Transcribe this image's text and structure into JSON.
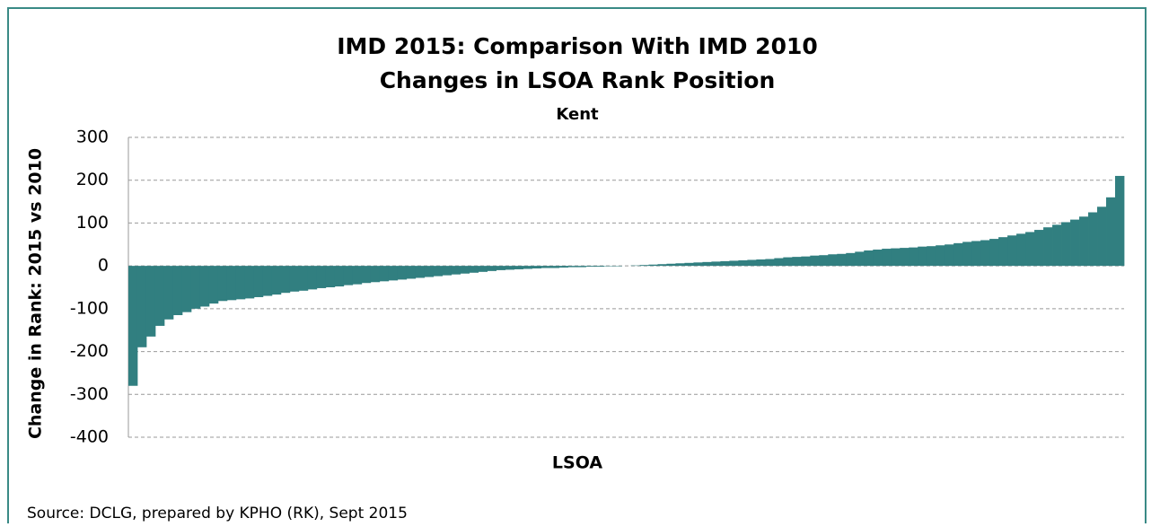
{
  "chart_data": {
    "type": "bar",
    "title_lines": [
      "IMD 2015: Comparison With IMD 2010",
      "Changes in LSOA Rank Position"
    ],
    "subtitle": "Kent",
    "x_label": "LSOA",
    "y_label": "Change in Rank: 2015 vs 2010",
    "source": "Source: DCLG, prepared by KPHO (RK), Sept 2015",
    "color": "#317f80",
    "ylim": [
      -400,
      300
    ],
    "yticks": [
      -400,
      -300,
      -200,
      -100,
      0,
      100,
      200,
      300
    ],
    "grid": true,
    "values": [
      -280,
      -190,
      -165,
      -140,
      -125,
      -115,
      -108,
      -100,
      -95,
      -88,
      -82,
      -80,
      -78,
      -76,
      -73,
      -70,
      -67,
      -63,
      -60,
      -58,
      -55,
      -52,
      -50,
      -48,
      -45,
      -43,
      -40,
      -38,
      -36,
      -34,
      -32,
      -30,
      -28,
      -26,
      -24,
      -22,
      -20,
      -18,
      -16,
      -14,
      -12,
      -10,
      -9,
      -8,
      -7,
      -6,
      -5,
      -5,
      -4,
      -3,
      -3,
      -2,
      -2,
      -1,
      -1,
      0,
      1,
      2,
      3,
      4,
      5,
      6,
      7,
      8,
      9,
      10,
      11,
      12,
      13,
      14,
      15,
      16,
      18,
      20,
      21,
      22,
      24,
      25,
      27,
      28,
      30,
      33,
      36,
      38,
      40,
      41,
      42,
      43,
      45,
      46,
      48,
      50,
      53,
      56,
      58,
      60,
      63,
      67,
      71,
      75,
      79,
      84,
      90,
      96,
      102,
      108,
      115,
      125,
      138,
      160,
      210
    ]
  }
}
